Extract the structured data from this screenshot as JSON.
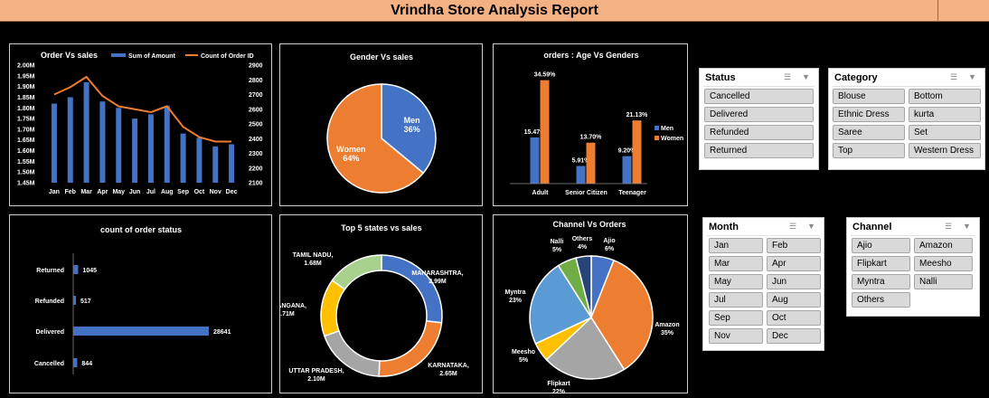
{
  "report_title": "Vrindha Store Analysis Report",
  "colors": {
    "blue": "#4472c4",
    "orange": "#ed7d31",
    "gray": "#a5a5a5",
    "yellow": "#ffc000",
    "lightblue": "#5b9bd5",
    "green": "#70ad47",
    "navy": "#264478",
    "header": "#f4b183"
  },
  "chart_data": [
    {
      "type": "bar",
      "title": "Order Vs sales",
      "categories": [
        "Jan",
        "Feb",
        "Mar",
        "Apr",
        "May",
        "Jun",
        "Jul",
        "Aug",
        "Sep",
        "Oct",
        "Nov",
        "Dec"
      ],
      "series": [
        {
          "name": "Sum of Amount",
          "axis": "left",
          "values": [
            1.82,
            1.85,
            1.92,
            1.83,
            1.8,
            1.75,
            1.77,
            1.81,
            1.68,
            1.66,
            1.62,
            1.63
          ]
        },
        {
          "name": "Count of Order ID",
          "axis": "right",
          "type": "line",
          "values": [
            2700,
            2750,
            2820,
            2690,
            2620,
            2600,
            2580,
            2620,
            2480,
            2410,
            2380,
            2380
          ]
        }
      ],
      "y_ticks": [
        "1.45M",
        "1.50M",
        "1.55M",
        "1.60M",
        "1.65M",
        "1.70M",
        "1.75M",
        "1.80M",
        "1.85M",
        "1.90M",
        "1.95M",
        "2.00M"
      ],
      "y2_ticks": [
        "2100",
        "2200",
        "2300",
        "2400",
        "2500",
        "2600",
        "2700",
        "2800",
        "2900"
      ],
      "ylim": [
        1.45,
        2.0
      ],
      "y2lim": [
        2100,
        2900
      ],
      "legend": "top"
    },
    {
      "type": "pie",
      "title": "Gender Vs sales",
      "slices": [
        {
          "name": "Men",
          "value": 36,
          "label": "36%"
        },
        {
          "name": "Women",
          "value": 64,
          "label": "64%"
        }
      ]
    },
    {
      "type": "bar",
      "title": "orders : Age Vs Genders",
      "categories": [
        "Adult",
        "Senior Citizen",
        "Teenager"
      ],
      "series": [
        {
          "name": "Men",
          "values": [
            15.47,
            5.91,
            9.2
          ],
          "labels": [
            "15.47%",
            "5.91%",
            "9.20%"
          ]
        },
        {
          "name": "Women",
          "values": [
            34.59,
            13.7,
            21.13
          ],
          "labels": [
            "34.59%",
            "13.70%",
            "21.13%"
          ]
        }
      ],
      "legend": "right"
    },
    {
      "type": "bar",
      "orientation": "horizontal",
      "title": "count of order status",
      "categories": [
        "Returned",
        "Refunded",
        "Delivered",
        "Cancelled"
      ],
      "values": [
        1045,
        517,
        28641,
        844
      ],
      "labels": [
        "1045",
        "517",
        "28641",
        "844"
      ]
    },
    {
      "type": "pie",
      "donut": true,
      "title": "Top 5 states vs sales",
      "slices": [
        {
          "name": "MAHARASHTRA,",
          "value": 2.99,
          "label": "2.99M"
        },
        {
          "name": "KARNATAKA,",
          "value": 2.65,
          "label": "2.65M"
        },
        {
          "name": "UTTAR PRADESH,",
          "value": 2.1,
          "label": "2.10M"
        },
        {
          "name": "TELANGANA,",
          "value": 1.71,
          "label": "1.71M"
        },
        {
          "name": "TAMIL NADU,",
          "value": 1.68,
          "label": "1.68M"
        }
      ]
    },
    {
      "type": "pie",
      "title": "Channel Vs Orders",
      "slices": [
        {
          "name": "Ajio",
          "value": 6,
          "label": "6%"
        },
        {
          "name": "Amazon",
          "value": 35,
          "label": "35%"
        },
        {
          "name": "Flipkart",
          "value": 22,
          "label": "22%"
        },
        {
          "name": "Meesho",
          "value": 5,
          "label": "5%"
        },
        {
          "name": "Myntra",
          "value": 23,
          "label": "23%"
        },
        {
          "name": "Nalli",
          "value": 5,
          "label": "5%"
        },
        {
          "name": "Others",
          "value": 4,
          "label": "4%"
        }
      ]
    }
  ],
  "slicers": {
    "status": {
      "title": "Status",
      "items": [
        "Cancelled",
        "Delivered",
        "Refunded",
        "Returned"
      ]
    },
    "category": {
      "title": "Category",
      "items": [
        "Blouse",
        "Bottom",
        "Ethnic Dress",
        "kurta",
        "Saree",
        "Set",
        "Top",
        "Western Dress"
      ]
    },
    "month": {
      "title": "Month",
      "items": [
        "Jan",
        "Feb",
        "Mar",
        "Apr",
        "May",
        "Jun",
        "Jul",
        "Aug",
        "Sep",
        "Oct",
        "Nov",
        "Dec"
      ]
    },
    "channel": {
      "title": "Channel",
      "items": [
        "Ajio",
        "Amazon",
        "Flipkart",
        "Meesho",
        "Myntra",
        "Nalli",
        "Others"
      ]
    }
  }
}
